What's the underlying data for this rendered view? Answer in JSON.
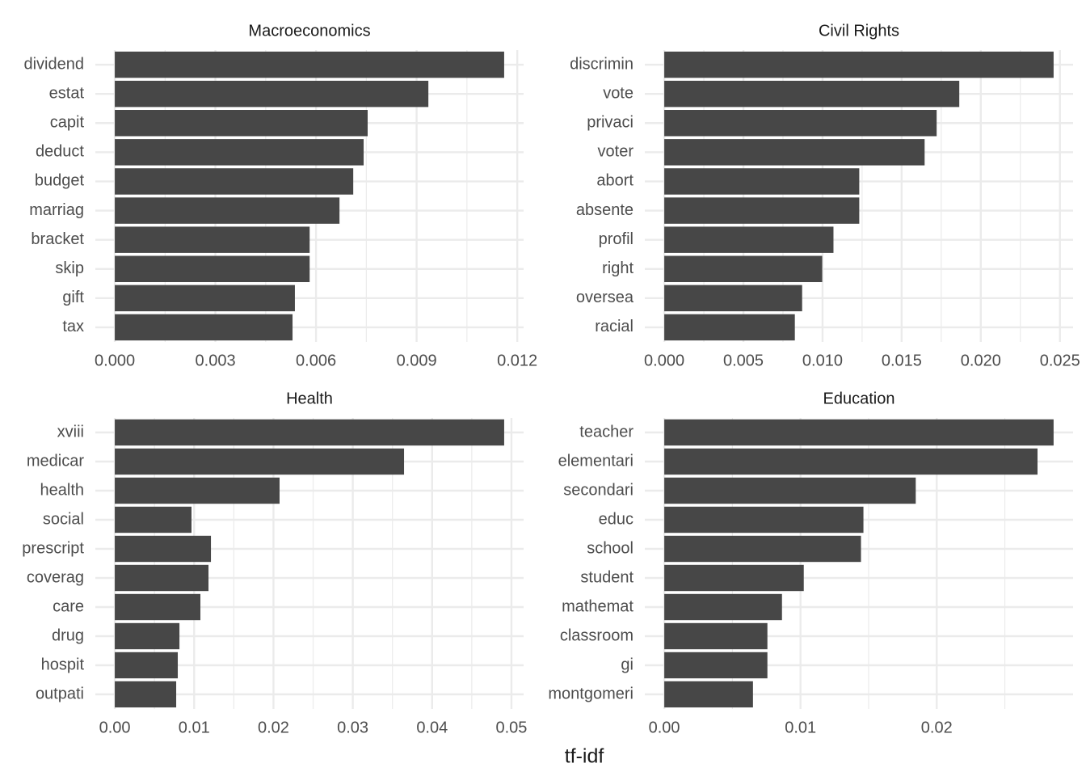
{
  "xlabel": "tf-idf",
  "chart_data": [
    {
      "type": "barh",
      "title": "Macroeconomics",
      "color": "#474747",
      "grid": true,
      "categories": [
        "dividend",
        "estat",
        "capit",
        "deduct",
        "budget",
        "marriag",
        "bracket",
        "skip",
        "gift",
        "tax"
      ],
      "values": [
        0.01161,
        0.00935,
        0.00754,
        0.00742,
        0.00711,
        0.0067,
        0.00581,
        0.00581,
        0.00537,
        0.0053
      ],
      "xlim": [
        -0.00058,
        0.01219
      ],
      "xticks": [
        {
          "value": 0,
          "label": "0.000"
        },
        {
          "value": 0.003,
          "label": "0.003"
        },
        {
          "value": 0.006,
          "label": "0.006"
        },
        {
          "value": 0.009,
          "label": "0.009"
        },
        {
          "value": 0.012,
          "label": "0.012"
        }
      ]
    },
    {
      "type": "barh",
      "title": "Civil Rights",
      "color": "#474747",
      "grid": true,
      "categories": [
        "discrimin",
        "vote",
        "privaci",
        "voter",
        "abort",
        "absente",
        "profil",
        "right",
        "oversea",
        "racial"
      ],
      "values": [
        0.0246,
        0.01864,
        0.01721,
        0.01645,
        0.01232,
        0.01232,
        0.01069,
        0.00998,
        0.00871,
        0.00825
      ],
      "xlim": [
        -0.00123,
        0.02583
      ],
      "xticks": [
        {
          "value": 0,
          "label": "0.000"
        },
        {
          "value": 0.005,
          "label": "0.005"
        },
        {
          "value": 0.01,
          "label": "0.010"
        },
        {
          "value": 0.015,
          "label": "0.015"
        },
        {
          "value": 0.02,
          "label": "0.020"
        },
        {
          "value": 0.025,
          "label": "0.025"
        }
      ]
    },
    {
      "type": "barh",
      "title": "Health",
      "color": "#474747",
      "grid": true,
      "categories": [
        "xviii",
        "medicar",
        "health",
        "social",
        "prescript",
        "coverag",
        "care",
        "drug",
        "hospit",
        "outpati"
      ],
      "values": [
        0.04908,
        0.03646,
        0.02077,
        0.00967,
        0.01212,
        0.01181,
        0.01079,
        0.00815,
        0.00794,
        0.00774
      ],
      "xlim": [
        -0.00245,
        0.05153
      ],
      "xticks": [
        {
          "value": 0,
          "label": "0.00"
        },
        {
          "value": 0.01,
          "label": "0.01"
        },
        {
          "value": 0.02,
          "label": "0.02"
        },
        {
          "value": 0.03,
          "label": "0.03"
        },
        {
          "value": 0.04,
          "label": "0.04"
        },
        {
          "value": 0.05,
          "label": "0.05"
        }
      ]
    },
    {
      "type": "barh",
      "title": "Education",
      "color": "#474747",
      "grid": true,
      "categories": [
        "teacher",
        "elementari",
        "secondari",
        "educ",
        "school",
        "student",
        "mathemat",
        "classroom",
        "gi",
        "montgomeri"
      ],
      "values": [
        0.02858,
        0.0274,
        0.01846,
        0.01462,
        0.01444,
        0.01024,
        0.00864,
        0.00757,
        0.00757,
        0.00651
      ],
      "xlim": [
        -0.00143,
        0.03001
      ],
      "xticks": [
        {
          "value": 0,
          "label": "0.00"
        },
        {
          "value": 0.01,
          "label": "0.01"
        },
        {
          "value": 0.02,
          "label": "0.02"
        }
      ]
    }
  ]
}
